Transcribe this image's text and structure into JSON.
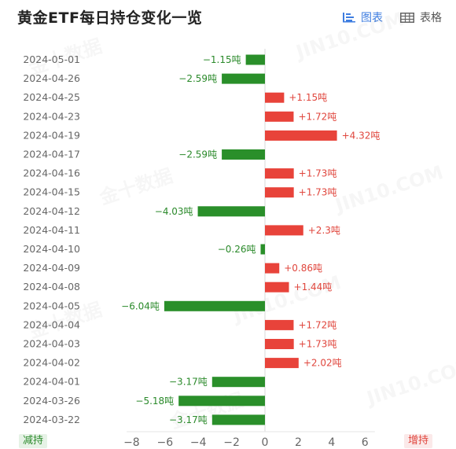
{
  "header": {
    "title": "黄金ETF每日持仓变化一览",
    "tabs": [
      {
        "label": "图表",
        "active": true,
        "icon": "chart-icon"
      },
      {
        "label": "表格",
        "active": false,
        "icon": "table-icon"
      }
    ]
  },
  "watermark": "金十数据 JIN10.COM",
  "legend_badges": {
    "decrease": "减持",
    "increase": "增持"
  },
  "colors": {
    "increase": "#e8433a",
    "decrease": "#2a8f2a",
    "accent": "#3e7de0"
  },
  "chart_data": {
    "type": "bar",
    "orientation": "horizontal",
    "categories": [
      "2024-05-01",
      "2024-04-26",
      "2024-04-25",
      "2024-04-23",
      "2024-04-19",
      "2024-04-17",
      "2024-04-16",
      "2024-04-15",
      "2024-04-12",
      "2024-04-11",
      "2024-04-10",
      "2024-04-09",
      "2024-04-08",
      "2024-04-05",
      "2024-04-04",
      "2024-04-03",
      "2024-04-02",
      "2024-04-01",
      "2024-03-26",
      "2024-03-22"
    ],
    "values": [
      -1.15,
      -2.59,
      1.15,
      1.72,
      4.32,
      -2.59,
      1.73,
      1.73,
      -4.03,
      2.3,
      -0.26,
      0.86,
      1.44,
      -6.04,
      1.72,
      1.73,
      2.02,
      -3.17,
      -5.18,
      -3.17
    ],
    "data_labels": [
      "−1.15吨",
      "−2.59吨",
      "+1.15吨",
      "+1.72吨",
      "+4.32吨",
      "−2.59吨",
      "+1.73吨",
      "+1.73吨",
      "−4.03吨",
      "+2.3吨",
      "−0.26吨",
      "+0.86吨",
      "+1.44吨",
      "−6.04吨",
      "+1.72吨",
      "+1.73吨",
      "+2.02吨",
      "−3.17吨",
      "−5.18吨",
      "−3.17吨"
    ],
    "xticks": [
      -8,
      -6,
      -4,
      -2,
      0,
      2,
      4,
      6
    ],
    "xtick_labels": [
      "−8",
      "−6",
      "−4",
      "−2",
      "0",
      "2",
      "4",
      "6"
    ],
    "xlim": [
      -8.3,
      6.6
    ],
    "grid": false,
    "title": "黄金ETF每日持仓变化一览",
    "xlabel": "",
    "ylabel": ""
  }
}
